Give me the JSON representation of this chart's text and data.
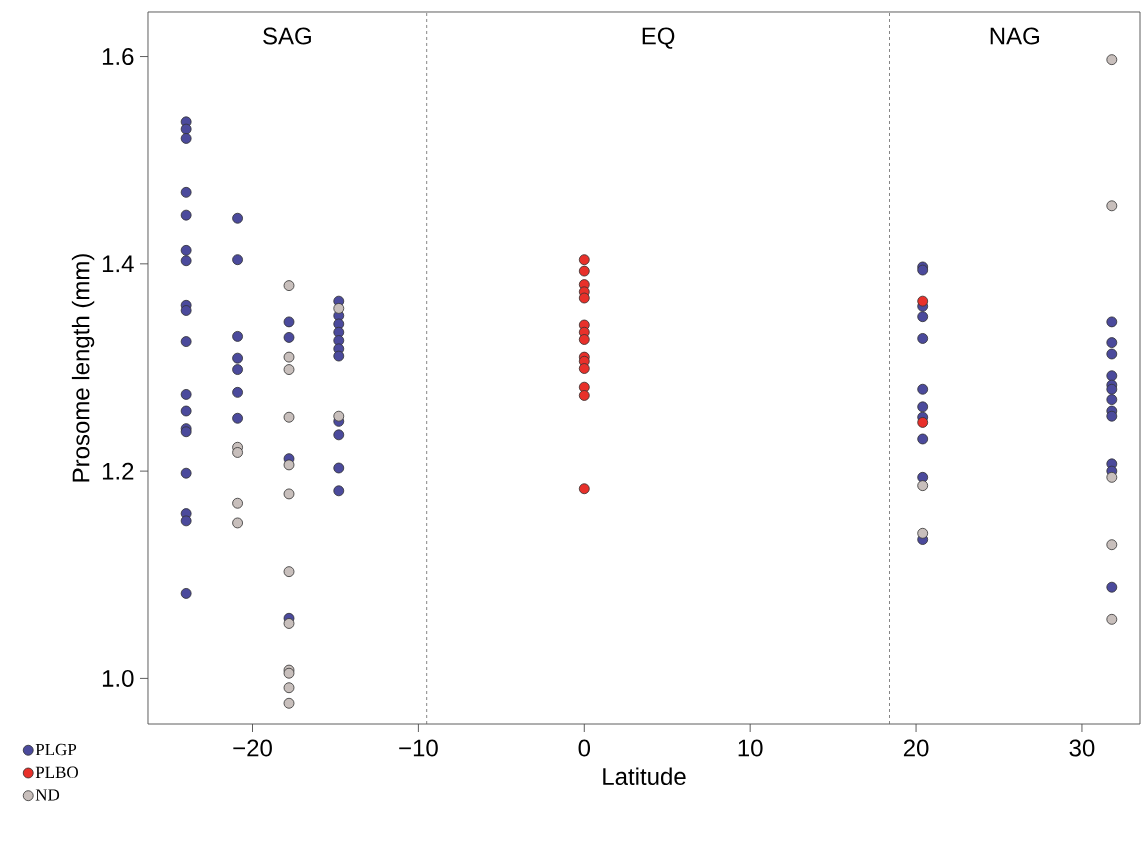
{
  "chart_data": {
    "type": "scatter",
    "xlabel": "Latitude",
    "ylabel": "Prosome length (mm)",
    "xlim": [
      -26.3,
      33.5
    ],
    "ylim": [
      0.956,
      1.643
    ],
    "xticks": [
      {
        "value": -20,
        "label": "−20"
      },
      {
        "value": -10,
        "label": "−10"
      },
      0,
      10,
      20,
      30
    ],
    "yticks": [
      {
        "value": 1.0,
        "label": "1.0"
      },
      1.2,
      1.4,
      1.6
    ],
    "grid": false,
    "legend": "bottom left",
    "marker": "circle",
    "series": [
      {
        "name": "PLGP",
        "color": "#4b4a9c",
        "x": [
          -24,
          -24,
          -24,
          -24,
          -24,
          -24,
          -24,
          -24,
          -24,
          -24,
          -24,
          -24,
          -24,
          -24,
          -24,
          -24,
          -24,
          -24,
          -20.9,
          -20.9,
          -20.9,
          -20.9,
          -20.9,
          -20.9,
          -20.9,
          -17.8,
          -17.8,
          -17.8,
          -17.8,
          -14.8,
          -14.8,
          -14.8,
          -14.8,
          -14.8,
          -14.8,
          -14.8,
          -14.8,
          -14.8,
          -14.8,
          -14.8,
          20.4,
          20.4,
          20.4,
          20.4,
          20.4,
          20.4,
          20.4,
          20.4,
          20.4,
          20.4,
          20.4,
          31.8,
          31.8,
          31.8,
          31.8,
          31.8,
          31.8,
          31.8,
          31.8,
          31.8,
          31.8,
          31.8,
          31.8
        ],
        "values": [
          1.537,
          1.53,
          1.521,
          1.469,
          1.447,
          1.413,
          1.403,
          1.36,
          1.355,
          1.325,
          1.274,
          1.258,
          1.241,
          1.238,
          1.198,
          1.159,
          1.152,
          1.082,
          1.444,
          1.404,
          1.33,
          1.309,
          1.298,
          1.276,
          1.251,
          1.344,
          1.329,
          1.212,
          1.058,
          1.364,
          1.35,
          1.342,
          1.334,
          1.326,
          1.318,
          1.311,
          1.248,
          1.235,
          1.203,
          1.181,
          1.397,
          1.394,
          1.359,
          1.349,
          1.328,
          1.279,
          1.262,
          1.252,
          1.231,
          1.194,
          1.134,
          1.344,
          1.324,
          1.313,
          1.292,
          1.283,
          1.279,
          1.269,
          1.258,
          1.253,
          1.207,
          1.2,
          1.088
        ]
      },
      {
        "name": "PLBO",
        "color": "#e8302a",
        "x": [
          0,
          0,
          0,
          0,
          0,
          0,
          0,
          0,
          0,
          0,
          0,
          0,
          0,
          0,
          20.4,
          20.4
        ],
        "values": [
          1.404,
          1.393,
          1.38,
          1.373,
          1.367,
          1.341,
          1.334,
          1.327,
          1.31,
          1.306,
          1.299,
          1.281,
          1.273,
          1.183,
          1.364,
          1.247
        ]
      },
      {
        "name": "ND",
        "color": "#c8bfbc",
        "x": [
          -20.9,
          -20.9,
          -20.9,
          -20.9,
          -17.8,
          -17.8,
          -17.8,
          -17.8,
          -17.8,
          -17.8,
          -17.8,
          -17.8,
          -17.8,
          -17.8,
          -17.8,
          -17.8,
          -14.8,
          -14.8,
          20.4,
          20.4,
          31.8,
          31.8,
          31.8,
          31.8,
          31.8
        ],
        "values": [
          1.223,
          1.218,
          1.169,
          1.15,
          1.379,
          1.31,
          1.298,
          1.252,
          1.206,
          1.178,
          1.103,
          1.053,
          1.008,
          1.005,
          0.991,
          0.976,
          1.357,
          1.253,
          1.186,
          1.14,
          1.597,
          1.456,
          1.194,
          1.129,
          1.057
        ]
      }
    ],
    "ref_lines": [
      {
        "axis": "x",
        "value": -9.5,
        "color": "#666666",
        "line_style": "dashed"
      },
      {
        "axis": "x",
        "value": 18.4,
        "color": "#666666",
        "line_style": "dashed"
      }
    ],
    "annotations": [
      "SAG",
      "EQ",
      "NAG"
    ]
  }
}
